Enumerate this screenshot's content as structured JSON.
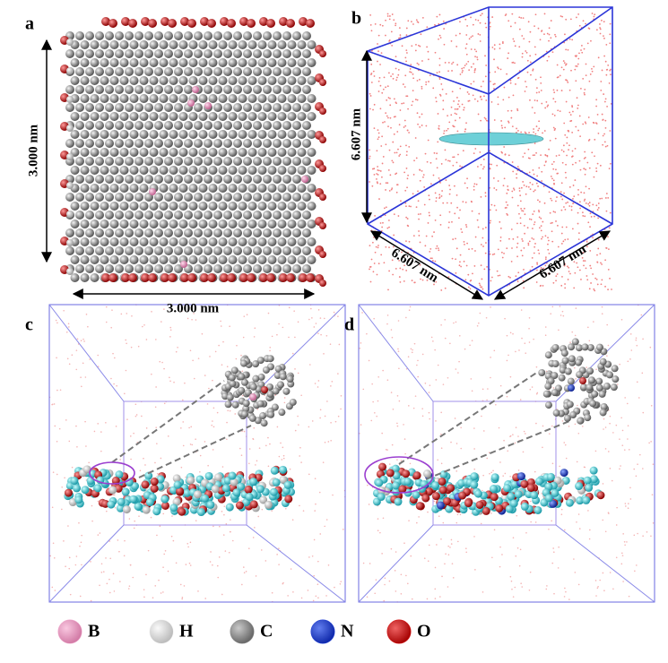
{
  "panels": [
    {
      "label": "a",
      "dimensions": [
        "3.000 nm",
        "3.000 nm"
      ]
    },
    {
      "label": "b",
      "dimensions": [
        "6.607 nm",
        "6.607 nm",
        "6.607 nm"
      ]
    },
    {
      "label": "c"
    },
    {
      "label": "d"
    }
  ],
  "legend": [
    {
      "label": "B",
      "color": "#f0a8cc"
    },
    {
      "label": "H",
      "color": "#f2f2f2"
    },
    {
      "label": "C",
      "color": "#8a8a8a"
    },
    {
      "label": "N",
      "color": "#1f3fd8"
    },
    {
      "label": "O",
      "color": "#d81010"
    }
  ]
}
